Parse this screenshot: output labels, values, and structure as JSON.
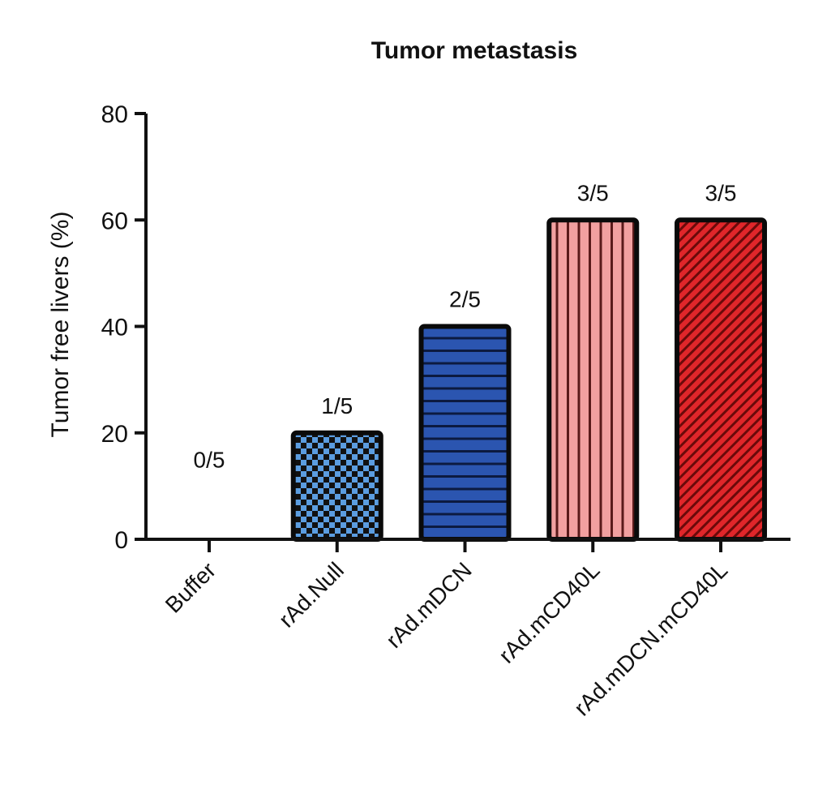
{
  "chart_data": {
    "type": "bar",
    "title": "Tumor metastasis",
    "xlabel": "",
    "ylabel": "Tumor free livers (%)",
    "ylim": [
      0,
      80
    ],
    "yticks": [
      0,
      20,
      40,
      60,
      80
    ],
    "grid": false,
    "categories": [
      "Buffer",
      "rAd.Null",
      "rAd.mDCN",
      "rAd.mCD40L",
      "rAd.mDCN.mCD40L"
    ],
    "values": [
      0,
      20,
      40,
      60,
      60
    ],
    "data_labels": [
      "0/5",
      "1/5",
      "2/5",
      "3/5",
      "3/5"
    ],
    "bar_colors": [
      "#ffffff",
      "#5b9de0",
      "#2b55b0",
      "#f2a0a0",
      "#e0262a"
    ],
    "bar_patterns": [
      "none",
      "checkerboard",
      "horizontal-stripes",
      "vertical-stripes",
      "diagonal-stripes"
    ]
  }
}
